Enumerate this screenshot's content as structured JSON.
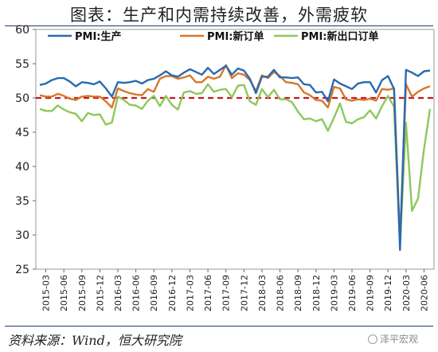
{
  "chart_data": {
    "type": "line",
    "title": "图表：生产和内需持续改善，外需疲软",
    "ylim": [
      25,
      60
    ],
    "yticks": [
      25,
      30,
      35,
      40,
      45,
      50,
      55,
      60
    ],
    "xtick_labels": [
      "2015-03",
      "2015-06",
      "2015-09",
      "2015-12",
      "2016-03",
      "2016-06",
      "2016-09",
      "2016-12",
      "2017-03",
      "2017-06",
      "2017-09",
      "2017-12",
      "2018-03",
      "2018-06",
      "2018-09",
      "2018-12",
      "2019-03",
      "2019-06",
      "2019-09",
      "2019-12",
      "2020-03",
      "2020-06"
    ],
    "x": [
      "2015-02",
      "2015-03",
      "2015-04",
      "2015-05",
      "2015-06",
      "2015-07",
      "2015-08",
      "2015-09",
      "2015-10",
      "2015-11",
      "2015-12",
      "2016-01",
      "2016-02",
      "2016-03",
      "2016-04",
      "2016-05",
      "2016-06",
      "2016-07",
      "2016-08",
      "2016-09",
      "2016-10",
      "2016-11",
      "2016-12",
      "2017-01",
      "2017-02",
      "2017-03",
      "2017-04",
      "2017-05",
      "2017-06",
      "2017-07",
      "2017-08",
      "2017-09",
      "2017-10",
      "2017-11",
      "2017-12",
      "2018-01",
      "2018-02",
      "2018-03",
      "2018-04",
      "2018-05",
      "2018-06",
      "2018-07",
      "2018-08",
      "2018-09",
      "2018-10",
      "2018-11",
      "2018-12",
      "2019-01",
      "2019-02",
      "2019-03",
      "2019-04",
      "2019-05",
      "2019-06",
      "2019-07",
      "2019-08",
      "2019-09",
      "2019-10",
      "2019-11",
      "2019-12",
      "2020-01",
      "2020-02",
      "2020-03",
      "2020-04",
      "2020-05",
      "2020-06",
      "2020-07"
    ],
    "reference_line": 50,
    "legend_position": "top",
    "grid": false,
    "series": [
      {
        "name": "PMI:生产",
        "color": "#2a6ab0",
        "values": [
          51.9,
          52.1,
          52.6,
          52.9,
          52.9,
          52.4,
          51.7,
          52.3,
          52.2,
          52.0,
          52.4,
          51.4,
          50.2,
          52.3,
          52.2,
          52.3,
          52.5,
          52.1,
          52.6,
          52.8,
          53.3,
          53.9,
          53.3,
          53.1,
          53.7,
          54.2,
          53.8,
          53.4,
          54.4,
          53.5,
          54.1,
          54.7,
          53.4,
          54.3,
          54.0,
          52.8,
          50.7,
          53.1,
          53.1,
          54.1,
          53.0,
          53.0,
          52.9,
          53.0,
          52.0,
          51.9,
          50.8,
          50.9,
          49.5,
          52.7,
          52.1,
          51.7,
          51.3,
          52.1,
          52.3,
          52.3,
          50.8,
          52.6,
          53.2,
          51.3,
          27.8,
          54.1,
          53.7,
          53.2,
          53.9,
          54.0
        ]
      },
      {
        "name": "PMI:新订单",
        "color": "#d7772a",
        "values": [
          50.4,
          50.2,
          50.2,
          50.6,
          50.3,
          49.9,
          49.7,
          50.2,
          50.3,
          50.2,
          50.2,
          49.5,
          48.6,
          51.4,
          51.0,
          50.7,
          50.5,
          50.4,
          51.3,
          50.9,
          52.8,
          53.2,
          53.2,
          52.8,
          53.0,
          53.3,
          52.3,
          52.3,
          53.1,
          52.8,
          53.1,
          54.8,
          52.9,
          53.6,
          53.4,
          52.6,
          51.0,
          53.3,
          52.9,
          53.8,
          53.2,
          52.3,
          52.2,
          52.0,
          50.8,
          50.4,
          49.7,
          49.6,
          48.6,
          51.6,
          51.4,
          49.8,
          49.6,
          49.8,
          49.7,
          49.9,
          49.6,
          51.3,
          51.2,
          51.4,
          29.3,
          52.0,
          50.2,
          50.9,
          51.4,
          51.7
        ]
      },
      {
        "name": "PMI:新出口订单",
        "color": "#8dc85a",
        "values": [
          48.4,
          48.1,
          48.1,
          48.9,
          48.3,
          47.9,
          47.7,
          46.6,
          47.8,
          47.5,
          47.6,
          46.1,
          46.4,
          50.2,
          49.7,
          49.0,
          48.9,
          48.4,
          49.6,
          50.3,
          48.8,
          50.3,
          49.0,
          48.3,
          50.8,
          51.0,
          50.6,
          50.7,
          52.0,
          50.9,
          51.2,
          51.3,
          50.1,
          51.8,
          51.9,
          49.5,
          49.0,
          51.3,
          50.1,
          51.2,
          49.8,
          49.8,
          49.4,
          48.0,
          46.9,
          47.0,
          46.6,
          46.9,
          45.2,
          47.1,
          49.2,
          46.5,
          46.3,
          46.9,
          47.2,
          48.2,
          47.0,
          48.8,
          50.3,
          48.7,
          28.7,
          46.4,
          33.5,
          35.3,
          42.6,
          48.4
        ]
      }
    ]
  },
  "source": "资料来源：Wind，恒大研究院",
  "watermark": "泽平宏观"
}
